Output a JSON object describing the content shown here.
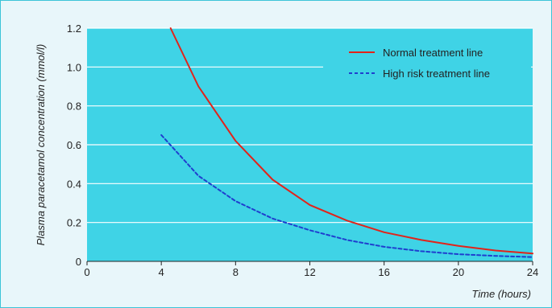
{
  "chart_data": {
    "type": "line",
    "title": "",
    "ylabel": "Plasma paracetamol concentration (mmol/l)",
    "xlabel": "Time (hours)",
    "xlim": [
      0,
      24
    ],
    "ylim": [
      0,
      1.2
    ],
    "xticks": [
      "0",
      "4",
      "8",
      "12",
      "16",
      "20",
      "24"
    ],
    "yticks": [
      "0",
      "0.2",
      "0.4",
      "0.6",
      "0.8",
      "1.0",
      "1.2"
    ],
    "grid": "horizontal",
    "legend_position": "top-right",
    "series": [
      {
        "name": "Normal treatment line",
        "color": "#e2231a",
        "style": "solid",
        "x": [
          4.5,
          6,
          8,
          10,
          12,
          14,
          16,
          18,
          20,
          22,
          24
        ],
        "y": [
          1.2,
          0.9,
          0.62,
          0.42,
          0.29,
          0.21,
          0.15,
          0.11,
          0.08,
          0.056,
          0.04
        ]
      },
      {
        "name": "High risk treatment line",
        "color": "#1f3fcf",
        "style": "dashed",
        "x": [
          4,
          6,
          8,
          10,
          12,
          14,
          16,
          18,
          20,
          22,
          24
        ],
        "y": [
          0.65,
          0.44,
          0.31,
          0.22,
          0.16,
          0.11,
          0.075,
          0.052,
          0.037,
          0.028,
          0.022
        ]
      }
    ]
  },
  "colors": {
    "plot_bg": "#3fd3e6",
    "frame_bg": "#e8f6fa",
    "grid": "#ffffff"
  }
}
